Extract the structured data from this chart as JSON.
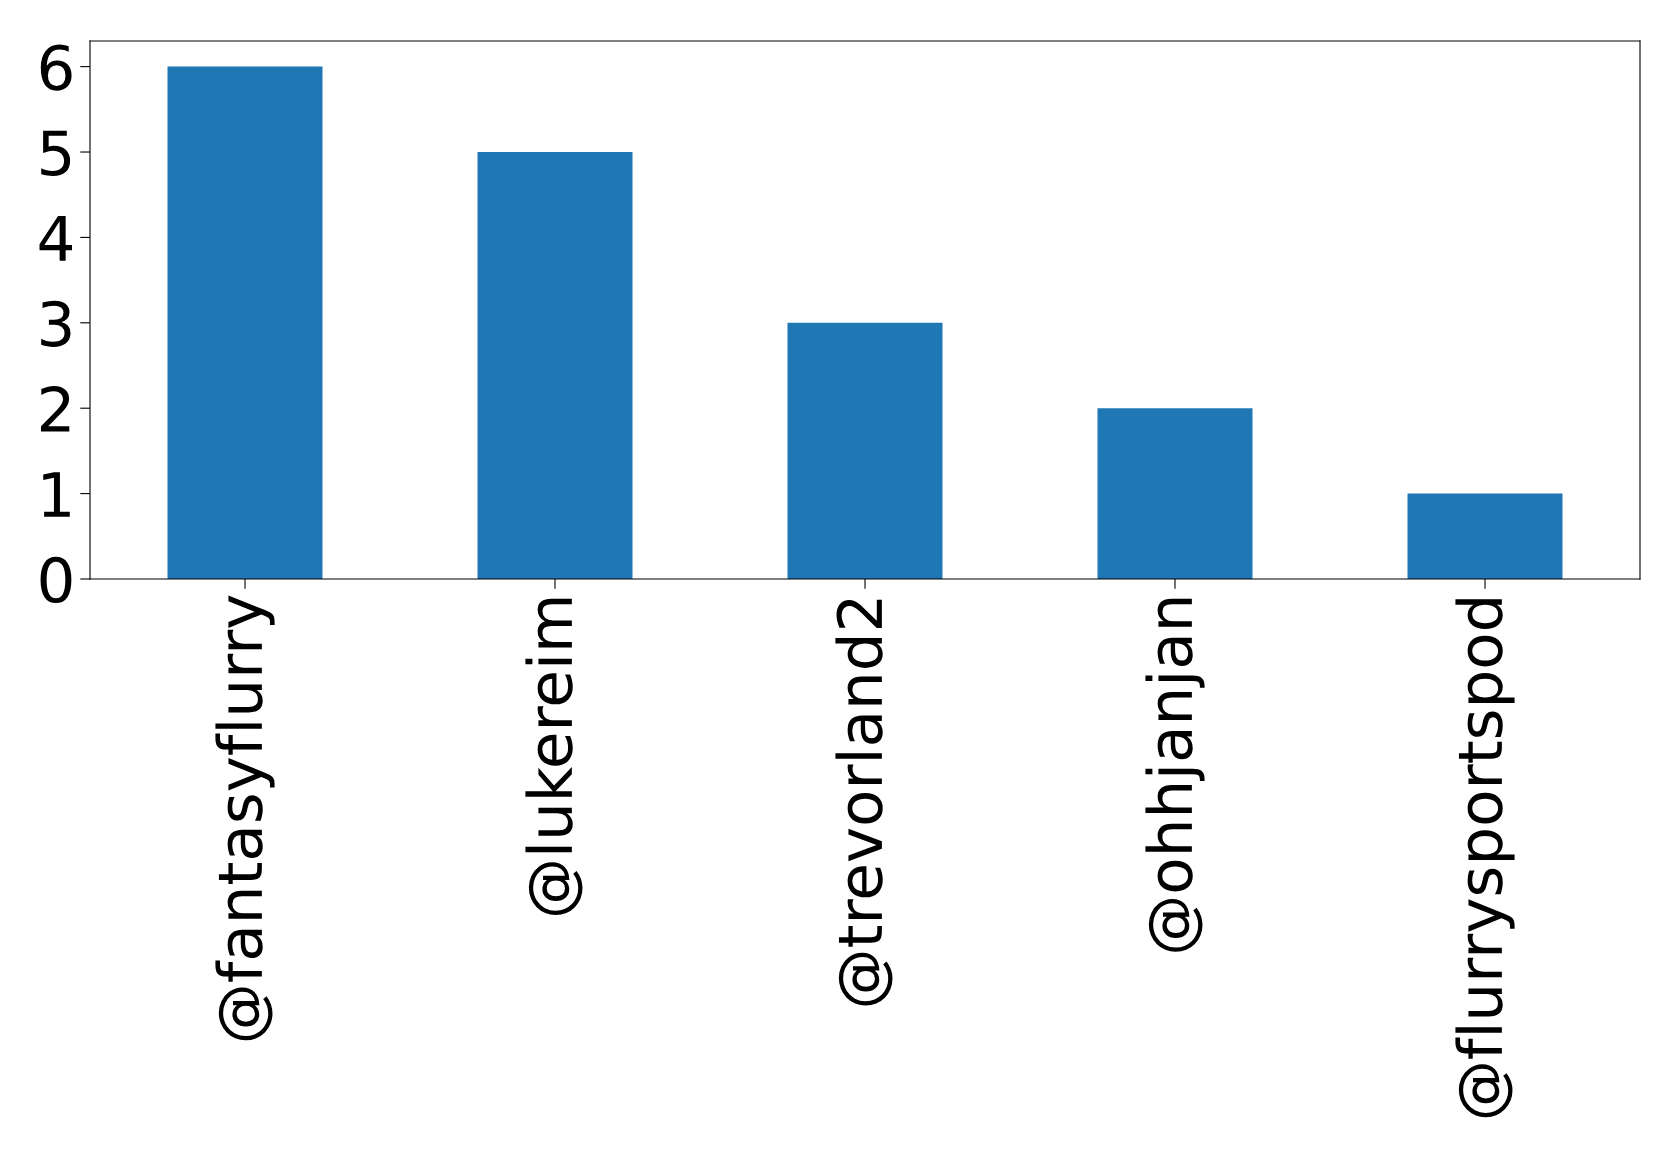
{
  "chart_data": {
    "type": "bar",
    "categories": [
      "@fantasyflurry",
      "@lukereim",
      "@trevorland2",
      "@ohhjanjan",
      "@flurrysportspod"
    ],
    "values": [
      6,
      5,
      3,
      2,
      1
    ],
    "color": "#1f77b4",
    "ylim": [
      0,
      6.3
    ],
    "yticks": [
      0,
      1,
      2,
      3,
      4,
      5,
      6
    ],
    "grid": false,
    "legend": false
  }
}
